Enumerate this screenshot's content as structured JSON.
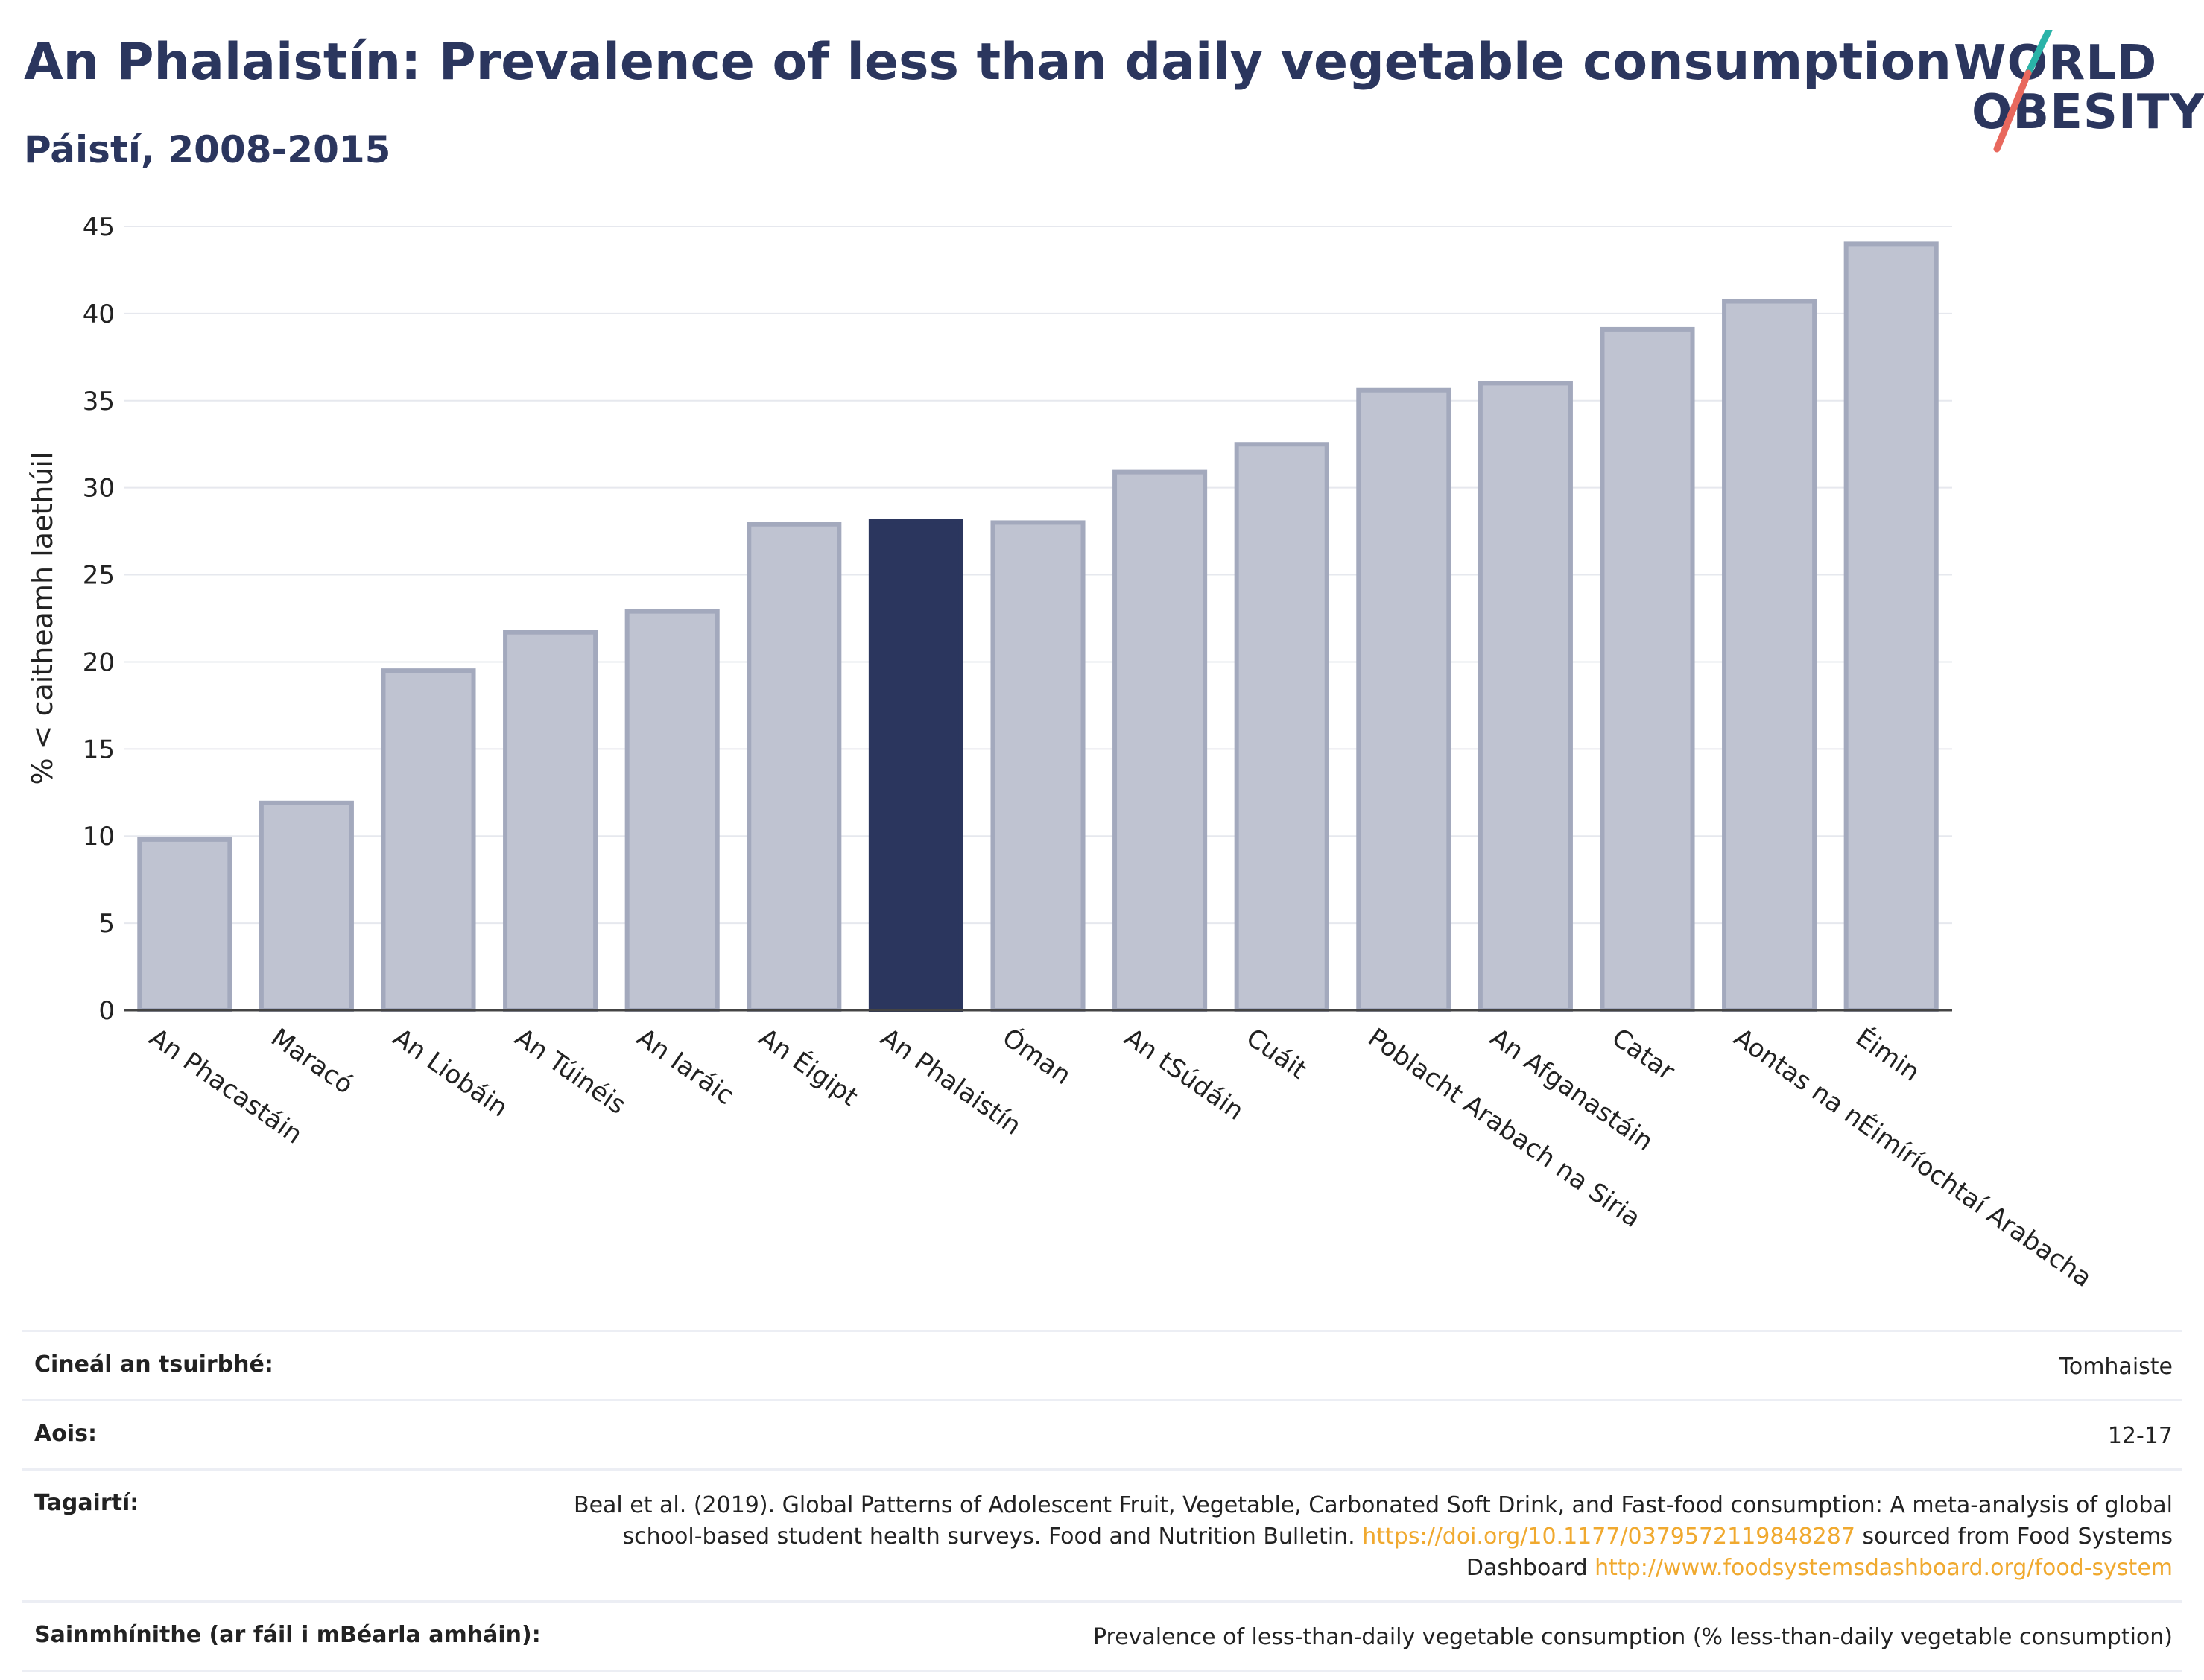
{
  "title": "An Phalaistín: Prevalence of less than daily vegetable consumption",
  "subtitle": "Páistí, 2008-2015",
  "logo": {
    "line1": "WORLD",
    "line2": "OBESITY",
    "accent_teal": "#2ab3a8",
    "accent_red": "#e8685d"
  },
  "colors": {
    "highlight": "#2b365e",
    "bar": "#bfc3d1",
    "bar_border": "#a3a9bd",
    "text_dark": "#2b365e"
  },
  "chart_data": {
    "type": "bar",
    "title": "An Phalaistín: Prevalence of less than daily vegetable consumption",
    "subtitle": "Páistí, 2008-2015",
    "xlabel": "",
    "ylabel": "% < caitheamh laethúil",
    "ylim": [
      0,
      45
    ],
    "yticks": [
      0,
      5,
      10,
      15,
      20,
      25,
      30,
      35,
      40,
      45
    ],
    "grid": true,
    "highlight": "An Phalaistín",
    "categories": [
      "An Phacastáin",
      "Maracó",
      "An Liobáin",
      "An Túinéis",
      "An Iaráic",
      "An Éigipt",
      "An Phalaistín",
      "Óman",
      "An tSúdáin",
      "Cuáit",
      "Poblacht Arabach na Siria",
      "An Afganastáin",
      "Catar",
      "Aontas na nÉimíríochtaí Arabacha",
      "Éimin"
    ],
    "values": [
      9.8,
      11.9,
      19.5,
      21.7,
      22.9,
      27.9,
      28.1,
      28.0,
      30.9,
      32.5,
      35.6,
      36.0,
      39.1,
      40.7,
      44.0
    ]
  },
  "meta": [
    {
      "label": "Cineál an tsuirbhé:",
      "value": "Tomhaiste"
    },
    {
      "label": "Aois:",
      "value": "12-17"
    },
    {
      "label": "Tagairtí:",
      "value_parts": {
        "text1": "Beal et al. (2019). Global Patterns of Adolescent Fruit, Vegetable, Carbonated Soft Drink, and Fast-food consumption: A meta-analysis of global school-based student health surveys. Food and Nutrition Bulletin. ",
        "link1": "https://doi.org/10.1177/0379572119848287",
        "text2": " sourced from Food Systems Dashboard ",
        "link2": "http://www.foodsystemsdashboard.org/food-system"
      }
    },
    {
      "label": "Sainmhínithe (ar fáil i mBéarla amháin):",
      "value": "Prevalence of less-than-daily vegetable consumption (% less-than-daily vegetable consumption)"
    }
  ]
}
